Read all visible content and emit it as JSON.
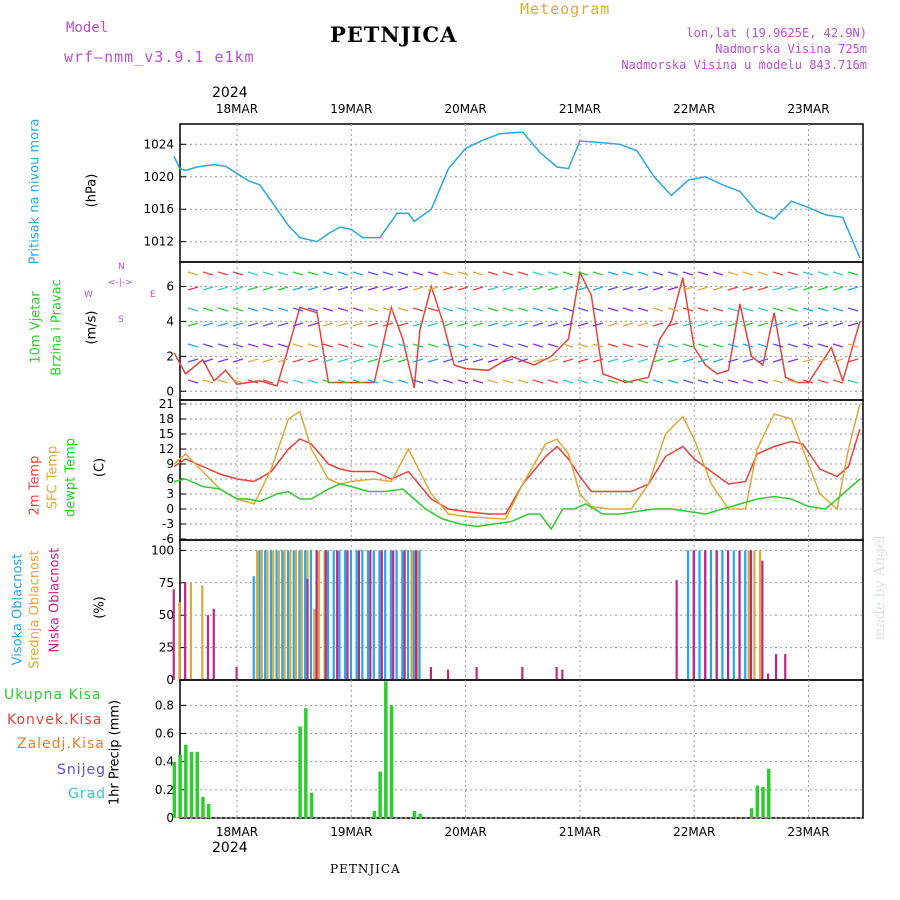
{
  "header": {
    "model_label": "Model",
    "model_name": "wrf–nmm_v3.9.1  e1km",
    "station": "PETNJICA",
    "meteogram": "Meteogram",
    "lonlat": "lon,lat (19.9625E, 42.9N)",
    "elev": "Nadmorska Visina 725m",
    "elev_model": "Nadmorska Visina u modelu 843.716m",
    "footer_station": "PETNJICA",
    "watermark": "made by Angel"
  },
  "colors": {
    "pressure": "#2aa8e0",
    "temp2m": "#e8413c",
    "sfc": "#e0a83a",
    "dew": "#2ecc2e",
    "high_cloud": "#22a8e6",
    "mid_cloud": "#e0a83a",
    "low_cloud": "#c0248a",
    "total_precip": "#2ecc2e",
    "conv": "#e8413c",
    "frozen": "#f07a2a",
    "snow": "#5a4fe0",
    "graupel": "#35c9c0",
    "wind_label": "#2ecc2e",
    "wind_axis": "#b84fd6"
  },
  "chart_data": [
    {
      "type": "line",
      "panel": "pressure",
      "ylabel_left": "Pritisak na nivou mora",
      "ylabel": "(hPa)",
      "yticks": [
        1012,
        1016,
        1020,
        1024
      ],
      "ylim": [
        1009.5,
        1026.5
      ],
      "grid": true,
      "date_year": "2024",
      "x_dates": [
        "18MAR",
        "19MAR",
        "20MAR",
        "21MAR",
        "22MAR",
        "23MAR"
      ],
      "series": [
        {
          "color_key": "pressure",
          "x": [
            -0.55,
            -0.5,
            -0.45,
            -0.35,
            -0.2,
            -0.1,
            0.1,
            0.2,
            0.3,
            0.45,
            0.55,
            0.7,
            0.8,
            0.9,
            1.0,
            1.1,
            1.25,
            1.4,
            1.5,
            1.55,
            1.7,
            1.85,
            2.0,
            2.15,
            2.3,
            2.5,
            2.65,
            2.8,
            2.9,
            3.0,
            3.2,
            3.35,
            3.5,
            3.65,
            3.8,
            3.95,
            4.1,
            4.25,
            4.4,
            4.55,
            4.7,
            4.85,
            5.0,
            5.15,
            5.3,
            5.45
          ],
          "y": [
            1022.5,
            1021,
            1020.8,
            1021.2,
            1021.5,
            1021.3,
            1019.5,
            1019,
            1017,
            1014,
            1012.5,
            1012,
            1013,
            1013.8,
            1013.5,
            1012.5,
            1012.5,
            1015.5,
            1015.5,
            1014.5,
            1016,
            1021,
            1023.5,
            1024.5,
            1025.3,
            1025.5,
            1023,
            1021.2,
            1021,
            1024.4,
            1024.2,
            1024,
            1023.2,
            1020,
            1017.7,
            1019.6,
            1020,
            1019,
            1018.2,
            1015.7,
            1014.8,
            1017,
            1016.2,
            1015.3,
            1015,
            1010
          ]
        }
      ]
    },
    {
      "type": "line",
      "panel": "wind",
      "ylabel_left": [
        "10m Vjetar",
        "Brzina i Pravac"
      ],
      "ylabel": "(m/s)",
      "compass": {
        "north": "N",
        "east": "E",
        "south": "S",
        "west": "W"
      },
      "yticks": [
        0,
        2,
        4,
        6
      ],
      "ylim": [
        -0.5,
        7.4
      ],
      "grid": true,
      "series": [
        {
          "color_key": "temp2m",
          "x": [
            -0.55,
            -0.45,
            -0.3,
            -0.2,
            -0.1,
            0.0,
            0.1,
            0.2,
            0.35,
            0.45,
            0.55,
            0.7,
            0.8,
            0.95,
            1.05,
            1.2,
            1.35,
            1.45,
            1.55,
            1.6,
            1.7,
            1.8,
            1.9,
            2.0,
            2.2,
            2.4,
            2.6,
            2.75,
            2.9,
            3.0,
            3.1,
            3.2,
            3.4,
            3.6,
            3.7,
            3.8,
            3.9,
            4.0,
            4.1,
            4.2,
            4.3,
            4.4,
            4.5,
            4.6,
            4.7,
            4.8,
            4.9,
            5.0,
            5.1,
            5.2,
            5.3,
            5.45
          ],
          "y": [
            2.2,
            1.0,
            1.8,
            0.6,
            1.2,
            0.4,
            0.5,
            0.6,
            0.3,
            2.5,
            4.8,
            4.5,
            0.5,
            0.5,
            0.5,
            0.5,
            4.8,
            3.0,
            0.2,
            3.5,
            6.0,
            4.0,
            1.5,
            1.3,
            1.2,
            2.0,
            1.5,
            2.0,
            3.0,
            6.8,
            5.5,
            1.0,
            0.5,
            0.8,
            3.0,
            4.0,
            6.5,
            2.5,
            1.5,
            1.0,
            1.2,
            5.0,
            2.0,
            1.5,
            4.5,
            0.8,
            0.5,
            0.5,
            1.5,
            2.5,
            0.6,
            4.0
          ]
        }
      ]
    },
    {
      "type": "line",
      "panel": "temperature",
      "ylabel_left": [
        "2m Temp",
        "SFC Temp",
        "dewpt Temp"
      ],
      "ylabel": "(C)",
      "yticks": [
        -6,
        -3,
        0,
        3,
        6,
        9,
        12,
        15,
        18,
        21
      ],
      "ylim": [
        -6.2,
        21.8
      ],
      "grid": true,
      "series": [
        {
          "name": "2m Temp",
          "color_key": "temp2m",
          "x": [
            -0.55,
            -0.45,
            -0.3,
            -0.15,
            0.0,
            0.15,
            0.3,
            0.45,
            0.55,
            0.65,
            0.8,
            0.9,
            1.0,
            1.2,
            1.35,
            1.5,
            1.7,
            1.85,
            2.0,
            2.2,
            2.35,
            2.5,
            2.7,
            2.8,
            2.9,
            3.0,
            3.1,
            3.25,
            3.45,
            3.6,
            3.75,
            3.9,
            4.0,
            4.15,
            4.3,
            4.45,
            4.55,
            4.7,
            4.85,
            4.95,
            5.1,
            5.25,
            5.35,
            5.45
          ],
          "y": [
            8.5,
            10,
            8.5,
            7,
            6,
            5.5,
            7.5,
            12,
            14,
            13,
            9,
            8,
            7.5,
            7.5,
            6,
            7.5,
            2,
            0,
            -0.5,
            -1,
            -1,
            5,
            10.5,
            12.5,
            10,
            6.5,
            3.5,
            3.5,
            3.5,
            5,
            10.5,
            12.5,
            10,
            7.5,
            5,
            5.5,
            11,
            12.5,
            13.5,
            13,
            8,
            6.5,
            8.5,
            16
          ]
        },
        {
          "name": "SFC Temp",
          "color_key": "sfc",
          "x": [
            -0.55,
            -0.45,
            -0.3,
            -0.15,
            0.0,
            0.15,
            0.3,
            0.45,
            0.55,
            0.65,
            0.8,
            0.9,
            1.0,
            1.2,
            1.35,
            1.5,
            1.7,
            1.85,
            2.0,
            2.2,
            2.35,
            2.5,
            2.7,
            2.8,
            2.9,
            3.0,
            3.1,
            3.25,
            3.45,
            3.6,
            3.75,
            3.9,
            4.0,
            4.15,
            4.3,
            4.45,
            4.55,
            4.7,
            4.85,
            4.95,
            5.1,
            5.25,
            5.35,
            5.45
          ],
          "y": [
            9,
            11,
            7.5,
            4,
            2,
            1,
            8,
            18,
            19.5,
            12,
            6,
            5,
            5.5,
            6,
            5.5,
            12,
            3,
            -1,
            -1.5,
            -1.8,
            -2,
            5,
            13,
            14,
            11,
            3,
            0.5,
            0,
            0,
            5,
            15,
            18.5,
            14,
            5,
            0,
            0,
            12,
            19,
            18,
            12,
            3,
            0,
            12,
            21
          ]
        },
        {
          "name": "dewpt Temp",
          "color_key": "dew",
          "x": [
            -0.55,
            -0.45,
            -0.3,
            -0.15,
            0.0,
            0.1,
            0.2,
            0.35,
            0.45,
            0.55,
            0.65,
            0.8,
            0.9,
            1.0,
            1.15,
            1.3,
            1.45,
            1.55,
            1.65,
            1.8,
            1.95,
            2.1,
            2.25,
            2.4,
            2.55,
            2.65,
            2.75,
            2.85,
            2.95,
            3.05,
            3.2,
            3.35,
            3.5,
            3.65,
            3.8,
            3.95,
            4.1,
            4.25,
            4.4,
            4.55,
            4.7,
            4.85,
            5.0,
            5.15,
            5.3,
            5.45
          ],
          "y": [
            5.5,
            6,
            4.5,
            4,
            2,
            2,
            1.5,
            3,
            3.5,
            2,
            2,
            4,
            5,
            4.5,
            3.5,
            3.5,
            4,
            2,
            0,
            -2,
            -3,
            -3.5,
            -3,
            -2.5,
            -1,
            -1,
            -4,
            0,
            0,
            1,
            -1,
            -1,
            -0.5,
            0,
            0,
            -0.5,
            -1,
            0,
            1,
            2,
            2.5,
            2,
            0.5,
            0,
            3,
            6
          ]
        }
      ]
    },
    {
      "type": "bar",
      "panel": "cloud",
      "ylabel_left": [
        "Visoka Oblacnost",
        "Srednja Oblacnost",
        "Niska Oblacnost"
      ],
      "ylabel": "(%)",
      "yticks": [
        0,
        25,
        50,
        75,
        100
      ],
      "ylim": [
        0,
        108
      ],
      "grid": true,
      "series": [
        {
          "name": "Visoka Oblacnost",
          "color_key": "high_cloud",
          "x": [
            0.15,
            0.2,
            0.25,
            0.3,
            0.35,
            0.4,
            0.45,
            0.5,
            0.55,
            0.6,
            0.65,
            0.7,
            0.8,
            0.85,
            0.9,
            0.95,
            1.0,
            1.05,
            1.1,
            1.15,
            1.2,
            1.25,
            1.3,
            1.35,
            1.4,
            1.45,
            1.5,
            1.55,
            1.6,
            3.95,
            4.0,
            4.05,
            4.1,
            4.15,
            4.2,
            4.25,
            4.3,
            4.35,
            4.4,
            4.45,
            4.5
          ],
          "values": [
            80,
            100,
            100,
            100,
            100,
            100,
            100,
            100,
            100,
            100,
            100,
            100,
            100,
            100,
            100,
            100,
            100,
            100,
            100,
            100,
            100,
            100,
            100,
            100,
            100,
            100,
            100,
            100,
            100,
            100,
            100,
            100,
            100,
            100,
            100,
            100,
            100,
            100,
            100,
            100,
            100
          ]
        },
        {
          "name": "Srednja Oblacnost",
          "color_key": "mid_cloud",
          "x": [
            -0.5,
            -0.4,
            -0.3,
            0.18,
            0.22,
            0.27,
            0.32,
            0.37,
            0.42,
            0.47,
            0.52,
            0.57,
            0.62,
            0.68,
            0.72,
            0.77,
            1.53,
            1.58,
            4.48,
            4.53,
            4.58
          ],
          "values": [
            60,
            75,
            73,
            100,
            100,
            100,
            100,
            100,
            100,
            100,
            100,
            100,
            100,
            55,
            100,
            100,
            100,
            100,
            100,
            100,
            100
          ]
        },
        {
          "name": "Niska Oblacnost",
          "color_key": "low_cloud",
          "x": [
            -0.55,
            -0.45,
            -0.25,
            -0.2,
            0.0,
            0.62,
            0.7,
            0.78,
            0.88,
            0.97,
            1.07,
            1.17,
            1.27,
            1.37,
            1.47,
            1.57,
            1.7,
            1.85,
            2.1,
            2.5,
            2.8,
            2.85,
            3.85,
            4.0,
            4.1,
            4.2,
            4.3,
            4.4,
            4.5,
            4.6,
            4.65,
            4.72,
            4.8
          ],
          "values": [
            70,
            75,
            50,
            55,
            10,
            78,
            100,
            100,
            100,
            100,
            100,
            100,
            100,
            100,
            100,
            100,
            10,
            8,
            10,
            10,
            10,
            8,
            77,
            100,
            100,
            100,
            100,
            100,
            100,
            92,
            5,
            20,
            20
          ]
        }
      ]
    },
    {
      "type": "bar",
      "panel": "precip",
      "legend_left": [
        "Ukupna Kisa",
        "Konvek.Kisa",
        "Zaledj.Kisa",
        "Snijeg",
        "Grad"
      ],
      "ylabel": "1hr Precip (mm)",
      "yticks": [
        0,
        0.2,
        0.4,
        0.6,
        0.8
      ],
      "ylim": [
        0,
        0.98
      ],
      "grid": true,
      "series": [
        {
          "name": "Ukupna Kisa",
          "color_key": "total_precip",
          "x": [
            -0.55,
            -0.5,
            -0.45,
            -0.4,
            -0.35,
            -0.3,
            -0.25,
            0.55,
            0.6,
            0.65,
            1.2,
            1.25,
            1.3,
            1.35,
            1.55,
            1.6,
            4.5,
            4.55,
            4.6,
            4.65
          ],
          "values": [
            0.4,
            0.45,
            0.52,
            0.47,
            0.47,
            0.15,
            0.1,
            0.65,
            0.78,
            0.18,
            0.05,
            0.33,
            0.97,
            0.8,
            0.05,
            0.03,
            0.07,
            0.23,
            0.22,
            0.35
          ]
        }
      ],
      "x_dates": [
        "18MAR",
        "19MAR",
        "20MAR",
        "21MAR",
        "22MAR",
        "23MAR"
      ],
      "date_year": "2024"
    }
  ]
}
